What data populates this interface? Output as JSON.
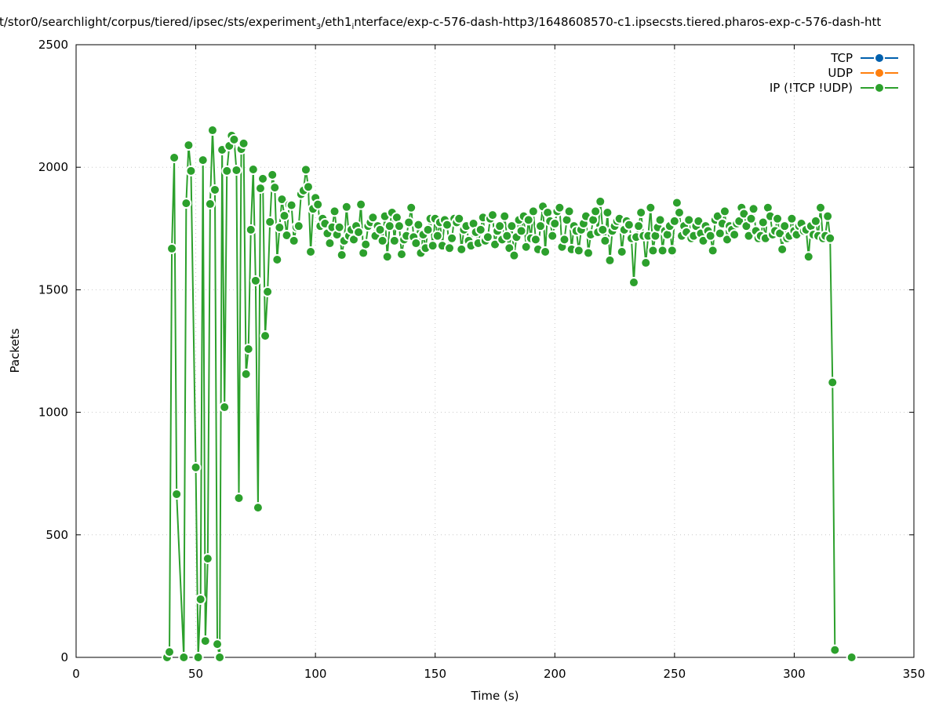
{
  "title": {
    "part1": "t/stor0/searchlight/corpus/tiered/ipsec/sts/experiment",
    "sub1": "3",
    "part2": "/eth1",
    "sub2": "i",
    "part3": "nterface/exp-c-576-dash-http3/1648608570-c1.ipsecsts.tiered.pharos-exp-c-576-dash-htt"
  },
  "chart_data": {
    "type": "line",
    "xlabel": "Time (s)",
    "ylabel": "Packets",
    "xlim": [
      0,
      350
    ],
    "ylim": [
      0,
      2500
    ],
    "xticks": [
      0,
      50,
      100,
      150,
      200,
      250,
      300,
      350
    ],
    "yticks": [
      0,
      500,
      1000,
      1500,
      2000,
      2500
    ],
    "grid": true,
    "legend_position": "top-right",
    "series": [
      {
        "name": "TCP",
        "color": "#0060ad",
        "points": []
      },
      {
        "name": "UDP",
        "color": "#ff7f0e",
        "points": []
      },
      {
        "name": "IP (!TCP  !UDP)",
        "color": "#2ca02c",
        "segments": [
          {
            "points": [
              [
                38,
                0
              ],
              [
                39,
                22
              ],
              [
                40,
                1668
              ],
              [
                41,
                2039
              ],
              [
                42,
                666
              ],
              [
                45,
                0
              ],
              [
                46,
                1853
              ],
              [
                47,
                2090
              ],
              [
                48,
                1985
              ],
              [
                50,
                775
              ],
              [
                51,
                0
              ],
              [
                52,
                237
              ],
              [
                53,
                2029
              ],
              [
                54,
                67
              ],
              [
                55,
                403
              ],
              [
                56,
                1850
              ],
              [
                57,
                2151
              ],
              [
                58,
                1908
              ],
              [
                59,
                54
              ],
              [
                60,
                0
              ],
              [
                61,
                2071
              ],
              [
                62,
                1021
              ],
              [
                63,
                1985
              ],
              [
                64,
                2087
              ],
              [
                65,
                2129
              ],
              [
                66,
                2113
              ],
              [
                67,
                1988
              ],
              [
                68,
                650
              ],
              [
                69,
                2074
              ],
              [
                70,
                2097
              ],
              [
                71,
                1156
              ],
              [
                72,
                1258
              ],
              [
                73,
                1745
              ],
              [
                74,
                1991
              ],
              [
                75,
                1537
              ],
              [
                76,
                611
              ],
              [
                77,
                1914
              ],
              [
                78,
                1953
              ],
              [
                79,
                1312
              ],
              [
                80,
                1492
              ],
              [
                81,
                1777
              ],
              [
                82,
                1969
              ],
              [
                83,
                1917
              ],
              [
                84,
                1623
              ],
              [
                85,
                1754
              ],
              [
                86,
                1869
              ],
              [
                87,
                1802
              ],
              [
                88,
                1722
              ],
              [
                89,
                1847
              ]
            ],
            "x0": 90,
            "step": 1,
            "y": [
              1845,
              1700,
              1755,
              1760,
              1890,
              1905,
              1990,
              1920,
              1655,
              1830,
              1875,
              1848,
              1760,
              1790,
              1770,
              1730,
              1690,
              1755,
              1820,
              1725,
              1755,
              1642,
              1700,
              1838,
              1720,
              1745,
              1705,
              1760,
              1735,
              1848,
              1650,
              1685,
              1760,
              1775,
              1795,
              1720,
              1760,
              1745,
              1700,
              1800,
              1635,
              1760,
              1815,
              1700,
              1795,
              1760,
              1645,
              1705,
              1720,
              1775,
              1835,
              1715,
              1690,
              1765,
              1650,
              1725,
              1670,
              1745,
              1790,
              1680,
              1790,
              1720,
              1775,
              1680,
              1785,
              1765,
              1670,
              1710,
              1790,
              1775,
              1790,
              1665,
              1745,
              1760,
              1700,
              1680,
              1770,
              1735,
              1690,
              1745,
              1795,
              1700,
              1715,
              1790,
              1805,
              1685,
              1740,
              1760,
              1705,
              1800,
              1720,
              1670,
              1760,
              1640,
              1715,
              1785,
              1740,
              1800,
              1675,
              1785,
              1710,
              1820,
              1705,
              1665,
              1760,
              1840,
              1655,
              1815,
              1780,
              1720,
              1770,
              1820,
              1835,
              1675,
              1705,
              1785,
              1820,
              1665,
              1760,
              1740,
              1660,
              1745,
              1770,
              1800,
              1650,
              1725,
              1785,
              1820,
              1735,
              1860,
              1745,
              1700,
              1815,
              1620,
              1740,
              1760,
              1780,
              1790,
              1655,
              1745,
              1780,
              1765,
              1710,
              1530,
              1715,
              1760,
              1815,
              1720,
              1610,
              1720,
              1835,
              1660,
              1720,
              1755,
              1785,
              1660,
              1740,
              1725,
              1760,
              1660,
              1780,
              1855,
              1815,
              1720,
              1760,
              1735,
              1785,
              1710,
              1720,
              1760,
              1780,
              1730,
              1700,
              1760,
              1740,
              1720,
              1660,
              1785,
              1800,
              1730,
              1770,
              1820,
              1705,
              1760,
              1745,
              1725,
              1770,
              1780,
              1835,
              1810,
              1760,
              1720,
              1790,
              1830,
              1740,
              1710,
              1720,
              1775,
              1710,
              1835,
              1800,
              1725,
              1740,
              1790,
              1730,
              1665,
              1760,
              1710,
              1720,
              1790,
              1740,
              1725,
              1760,
              1770,
              1740,
              1745,
              1635,
              1760,
              1725,
              1780,
              1720,
              1835,
              1710,
              1720,
              1800,
              1710,
              1122,
              30
            ]
          },
          {
            "points": [
              [
                324,
                0
              ]
            ]
          }
        ]
      }
    ]
  }
}
